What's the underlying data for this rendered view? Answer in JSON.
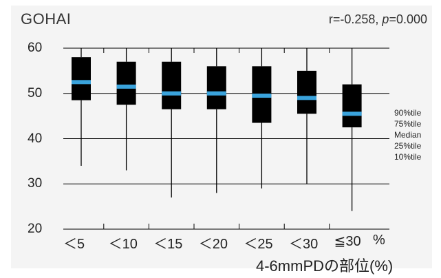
{
  "chart_data": {
    "type": "box",
    "title": "GOHAI",
    "stat_r": "r=-0.258, ",
    "stat_p_label": "p",
    "stat_p_value": "=0.000",
    "xlabel": "4-6mmPDの部位(%)",
    "x_unit": "%",
    "ylim": [
      20,
      60
    ],
    "yticks": [
      60,
      50,
      40,
      30,
      20
    ],
    "gridlines": [
      60,
      50,
      40,
      30
    ],
    "categories": [
      "＜5",
      "＜10",
      "＜15",
      "＜20",
      "＜25",
      "＜30",
      "≦30"
    ],
    "p10": [
      34,
      33,
      27,
      28,
      29,
      30,
      24
    ],
    "p25": [
      48.5,
      47.5,
      46.5,
      46.5,
      43.5,
      45.5,
      42.5
    ],
    "median": [
      52.5,
      51.5,
      50,
      50,
      49.5,
      49,
      45.5
    ],
    "p75": [
      58,
      57,
      57,
      56,
      56,
      55,
      52
    ],
    "p90": [
      60,
      60,
      60,
      60,
      60,
      60,
      60
    ],
    "legend": [
      "90%tile",
      "75%tile",
      "Median",
      "25%tile",
      "10%tile"
    ],
    "colors": {
      "box": "#000000",
      "median": "#3aa3dc",
      "grid": "#000000"
    }
  }
}
